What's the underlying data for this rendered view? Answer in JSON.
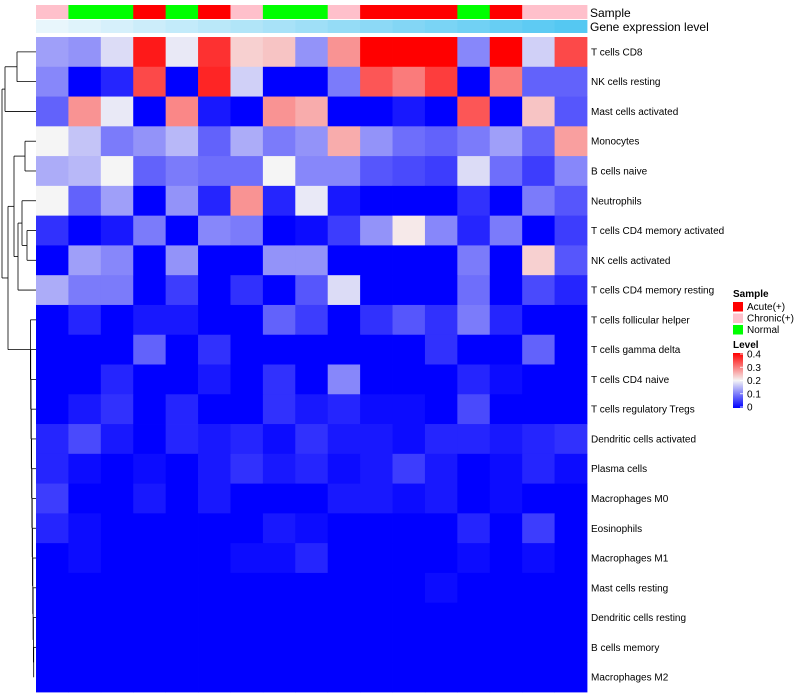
{
  "chart_data": {
    "type": "heatmap",
    "title": "",
    "annotation_labels": [
      "Sample",
      "Gene expression level"
    ],
    "sample_groups": [
      "Chronic(+)",
      "Normal",
      "Normal",
      "Acute(+)",
      "Normal",
      "Acute(+)",
      "Chronic(+)",
      "Normal",
      "Normal",
      "Chronic(+)",
      "Acute(+)",
      "Acute(+)",
      "Acute(+)",
      "Normal",
      "Acute(+)",
      "Chronic(+)",
      "Chronic(+)"
    ],
    "gene_expression_level": [
      0.02,
      0.05,
      0.08,
      0.11,
      0.14,
      0.17,
      0.2,
      0.23,
      0.26,
      0.29,
      0.32,
      0.35,
      0.38,
      0.41,
      0.44,
      0.47,
      0.5
    ],
    "rows": [
      "T cells CD8",
      "NK cells resting",
      "Mast cells activated",
      "Monocytes",
      "B cells naive",
      "Neutrophils",
      "T cells CD4 memory activated",
      "NK cells activated",
      "T cells CD4 memory resting",
      "T cells follicular helper",
      "T cells gamma delta",
      "T cells CD4 naive",
      "T cells regulatory  Tregs",
      "Dendritic cells activated",
      "Plasma cells",
      "Macrophages M0",
      "Eosinophils",
      "Macrophages M1",
      "Mast cells resting",
      "Dendritic cells resting",
      "B cells memory",
      "Macrophages M2"
    ],
    "values": [
      [
        0.13,
        0.12,
        0.18,
        0.38,
        0.19,
        0.36,
        0.23,
        0.24,
        0.12,
        0.28,
        0.4,
        0.4,
        0.4,
        0.11,
        0.4,
        0.17,
        0.34
      ],
      [
        0.11,
        0.0,
        0.03,
        0.34,
        0.0,
        0.37,
        0.17,
        0.0,
        0.0,
        0.1,
        0.33,
        0.3,
        0.35,
        0.0,
        0.3,
        0.08,
        0.08
      ],
      [
        0.08,
        0.28,
        0.19,
        0.0,
        0.29,
        0.02,
        0.0,
        0.28,
        0.26,
        0.0,
        0.0,
        0.02,
        0.0,
        0.33,
        0.0,
        0.24,
        0.07
      ],
      [
        0.2,
        0.16,
        0.1,
        0.12,
        0.15,
        0.08,
        0.14,
        0.1,
        0.12,
        0.26,
        0.12,
        0.09,
        0.08,
        0.1,
        0.13,
        0.08,
        0.27
      ],
      [
        0.14,
        0.15,
        0.2,
        0.08,
        0.1,
        0.09,
        0.09,
        0.2,
        0.11,
        0.11,
        0.07,
        0.06,
        0.05,
        0.18,
        0.09,
        0.05,
        0.11
      ],
      [
        0.2,
        0.08,
        0.13,
        0.0,
        0.12,
        0.03,
        0.28,
        0.03,
        0.19,
        0.02,
        0.0,
        0.0,
        0.0,
        0.04,
        0.0,
        0.1,
        0.07
      ],
      [
        0.04,
        0.0,
        0.02,
        0.1,
        0.0,
        0.11,
        0.1,
        0.0,
        0.01,
        0.05,
        0.12,
        0.21,
        0.11,
        0.03,
        0.1,
        0.0,
        0.05
      ],
      [
        0.0,
        0.13,
        0.11,
        0.0,
        0.12,
        0.0,
        0.0,
        0.12,
        0.12,
        0.0,
        0.0,
        0.0,
        0.0,
        0.1,
        0.0,
        0.23,
        0.07
      ],
      [
        0.14,
        0.1,
        0.1,
        0.0,
        0.05,
        0.0,
        0.04,
        0.0,
        0.07,
        0.18,
        0.0,
        0.0,
        0.0,
        0.09,
        0.0,
        0.06,
        0.03
      ],
      [
        0.0,
        0.03,
        0.0,
        0.02,
        0.02,
        0.0,
        0.0,
        0.08,
        0.05,
        0.0,
        0.04,
        0.07,
        0.04,
        0.1,
        0.03,
        0.0,
        0.0
      ],
      [
        0.0,
        0.0,
        0.0,
        0.08,
        0.0,
        0.04,
        0.0,
        0.0,
        0.0,
        0.0,
        0.0,
        0.0,
        0.04,
        0.0,
        0.0,
        0.08,
        0.0
      ],
      [
        0.0,
        0.0,
        0.03,
        0.0,
        0.0,
        0.02,
        0.0,
        0.04,
        0.0,
        0.11,
        0.0,
        0.0,
        0.0,
        0.03,
        0.01,
        0.0,
        0.0
      ],
      [
        0.0,
        0.02,
        0.04,
        0.0,
        0.03,
        0.0,
        0.0,
        0.04,
        0.02,
        0.03,
        0.01,
        0.01,
        0.0,
        0.06,
        0.0,
        0.0,
        0.0
      ],
      [
        0.03,
        0.06,
        0.02,
        0.0,
        0.03,
        0.02,
        0.03,
        0.01,
        0.04,
        0.02,
        0.02,
        0.01,
        0.03,
        0.03,
        0.02,
        0.03,
        0.04
      ],
      [
        0.03,
        0.01,
        0.0,
        0.01,
        0.0,
        0.02,
        0.04,
        0.02,
        0.03,
        0.01,
        0.02,
        0.05,
        0.02,
        0.0,
        0.01,
        0.03,
        0.01
      ],
      [
        0.05,
        0.0,
        0.0,
        0.02,
        0.0,
        0.02,
        0.0,
        0.0,
        0.0,
        0.02,
        0.02,
        0.01,
        0.02,
        0.0,
        0.01,
        0.0,
        0.0
      ],
      [
        0.03,
        0.01,
        0.0,
        0.0,
        0.0,
        0.0,
        0.0,
        0.02,
        0.01,
        0.0,
        0.0,
        0.0,
        0.0,
        0.03,
        0.0,
        0.05,
        0.0
      ],
      [
        0.0,
        0.01,
        0.0,
        0.0,
        0.0,
        0.0,
        0.01,
        0.01,
        0.03,
        0.0,
        0.0,
        0.0,
        0.0,
        0.01,
        0.0,
        0.01,
        0.0
      ],
      [
        0.0,
        0.0,
        0.0,
        0.0,
        0.0,
        0.0,
        0.0,
        0.0,
        0.0,
        0.0,
        0.0,
        0.0,
        0.01,
        0.0,
        0.0,
        0.0,
        0.0
      ],
      [
        0.0,
        0.0,
        0.0,
        0.0,
        0.0,
        0.0,
        0.0,
        0.0,
        0.0,
        0.0,
        0.0,
        0.0,
        0.0,
        0.0,
        0.0,
        0.0,
        0.0
      ],
      [
        0.0,
        0.0,
        0.0,
        0.0,
        0.0,
        0.0,
        0.0,
        0.0,
        0.0,
        0.0,
        0.0,
        0.0,
        0.0,
        0.0,
        0.0,
        0.0,
        0.0
      ],
      [
        0.0,
        0.0,
        0.0,
        0.0,
        0.0,
        0.0,
        0.0,
        0.0,
        0.0,
        0.0,
        0.0,
        0.0,
        0.0,
        0.0,
        0.0,
        0.0,
        0.0
      ]
    ],
    "color_scale": {
      "min": 0,
      "mid": 0.2,
      "max": 0.4,
      "low_color": "#0000ff",
      "mid_color": "#f5f5f5",
      "high_color": "#ff0000"
    },
    "legend": {
      "sample_title": "Sample",
      "sample_entries": [
        {
          "label": "Acute(+)",
          "color": "#ff0000"
        },
        {
          "label": "Chronic(+)",
          "color": "#ffc0cb"
        },
        {
          "label": "Normal",
          "color": "#00ff00"
        }
      ],
      "level_title": "Level",
      "level_ticks": [
        "0.4",
        "0.3",
        "0.2",
        "0.1",
        "0"
      ],
      "placement": "right"
    },
    "expression_colors": {
      "low": "#e8f6fc",
      "high": "#55c8f2"
    },
    "dendrogram": "rows"
  }
}
